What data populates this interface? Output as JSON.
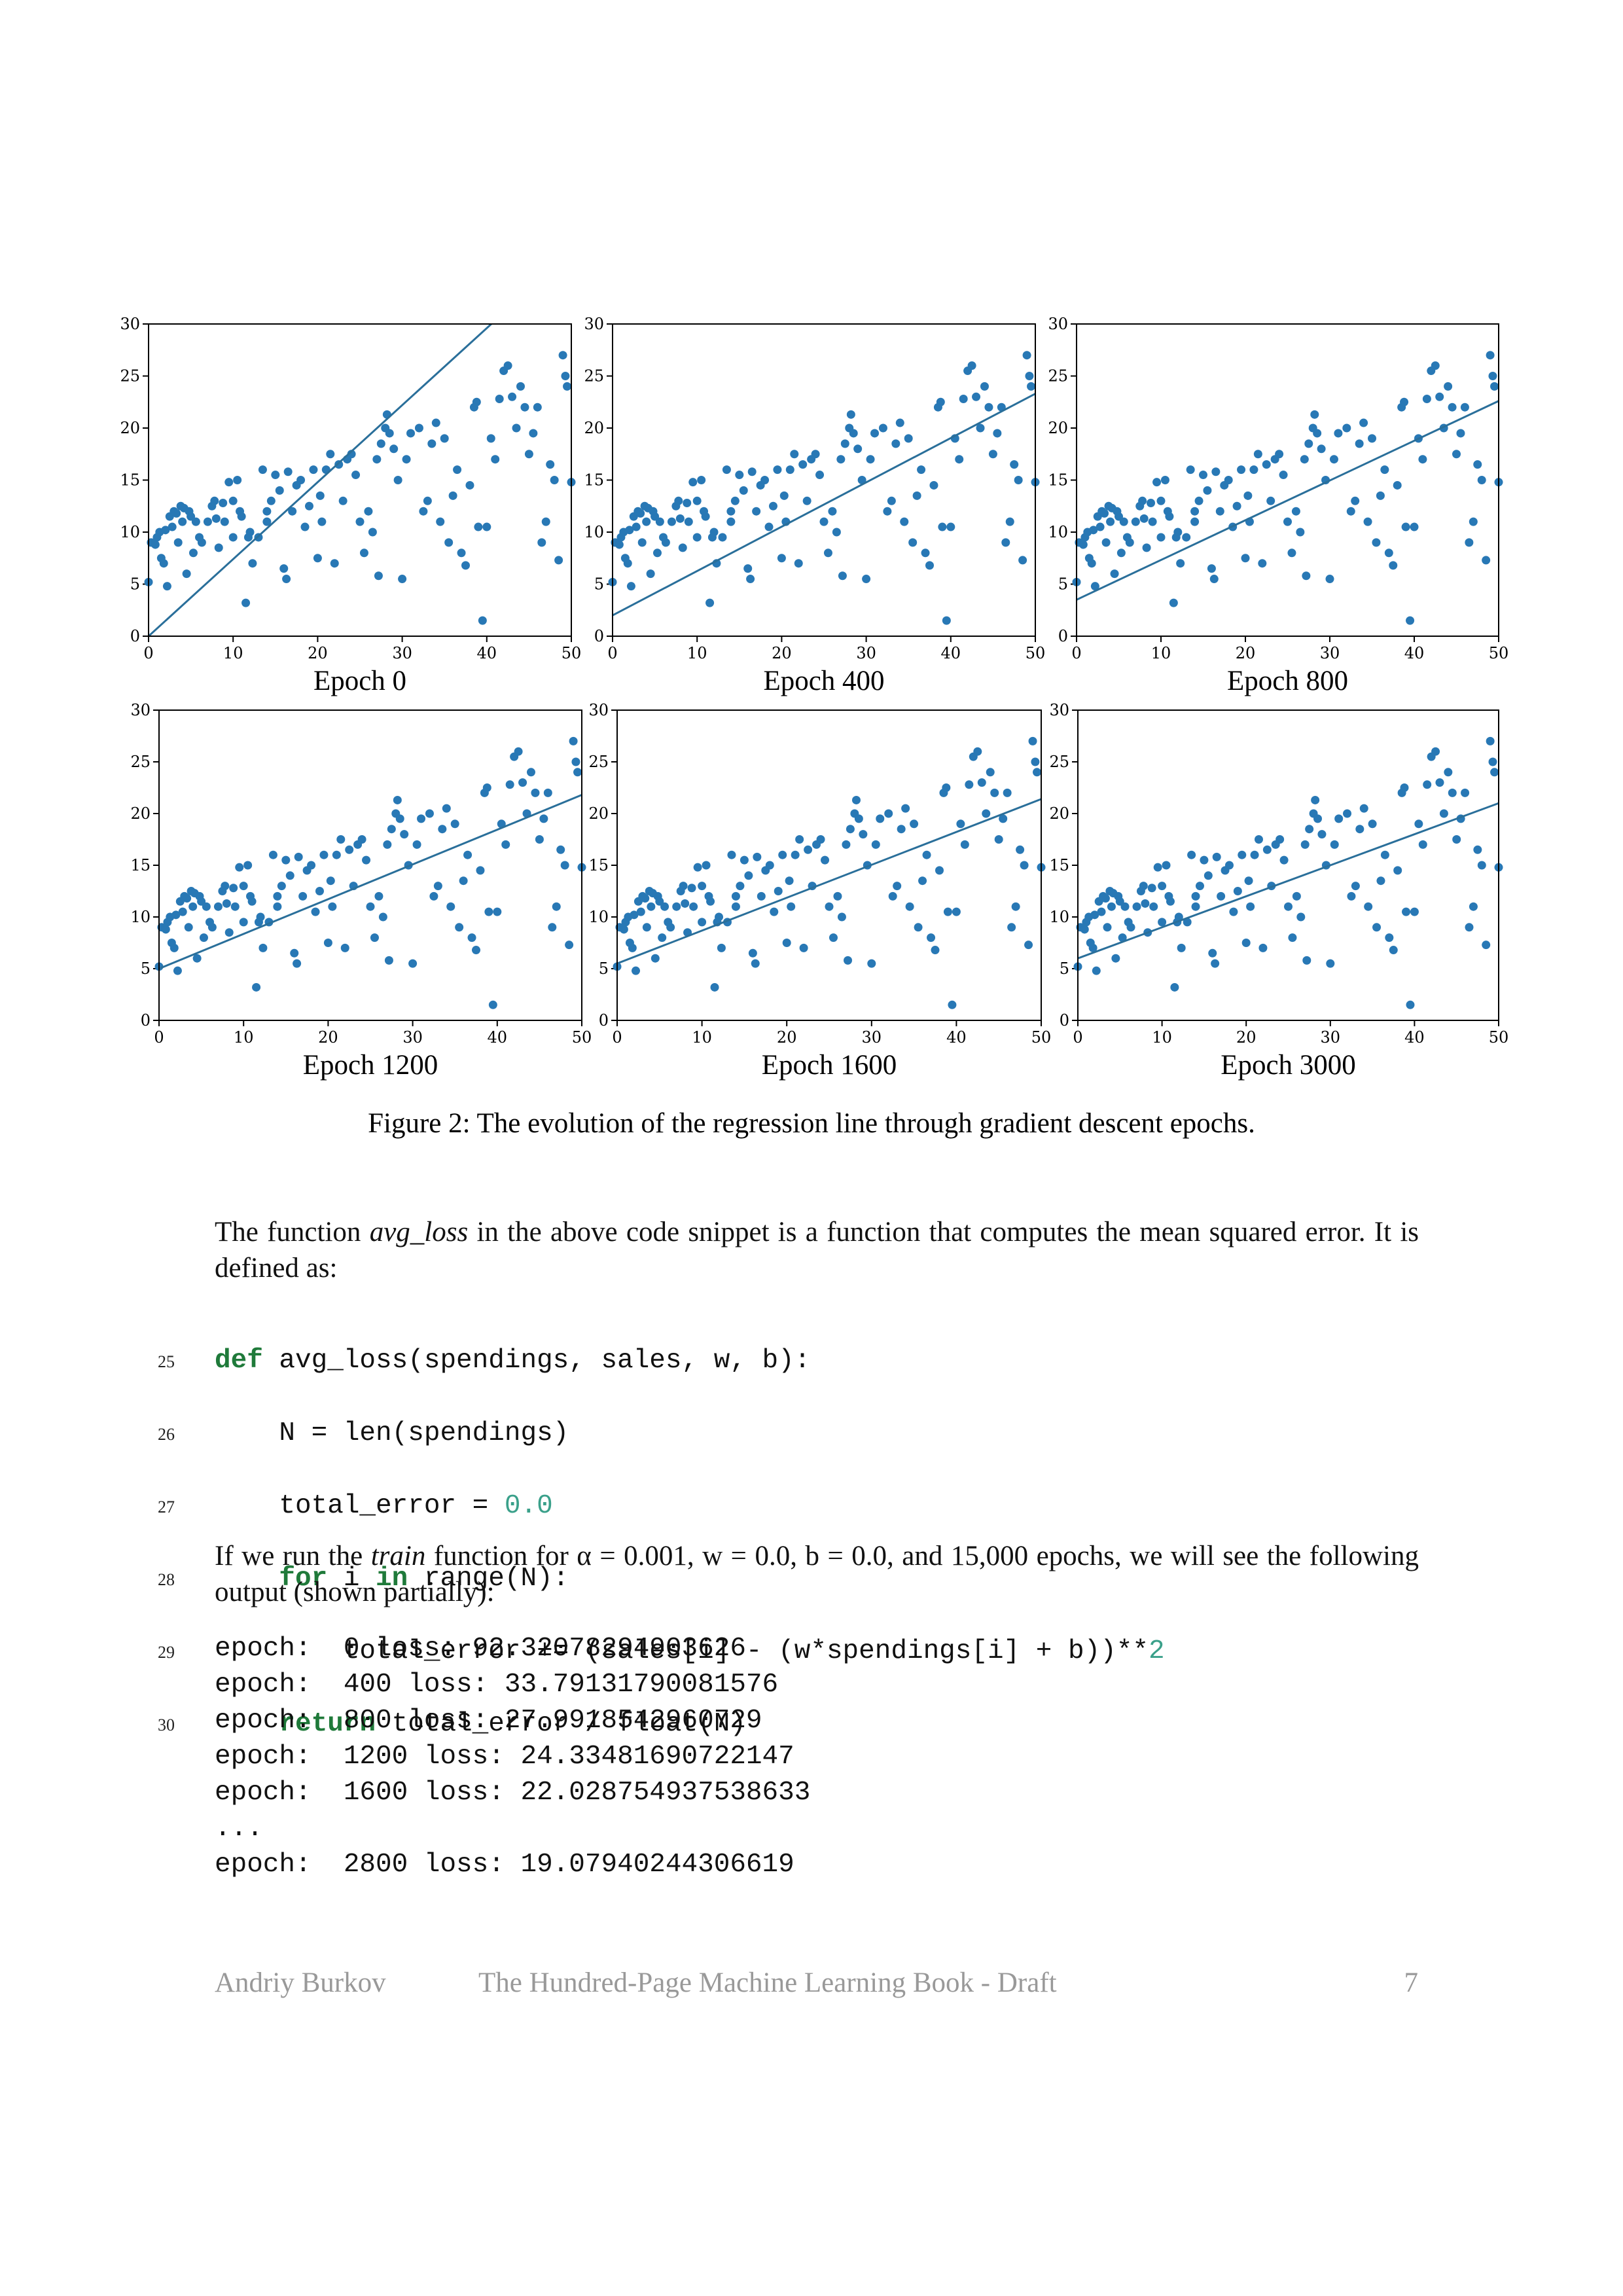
{
  "chart_data": {
    "type": "scatter",
    "color": "#2878b5",
    "line_color": "#2a6f9a",
    "xlim": [
      0,
      50
    ],
    "ylim": [
      0,
      30
    ],
    "xticks": [
      0,
      10,
      20,
      30,
      40,
      50
    ],
    "yticks": [
      0,
      5,
      10,
      15,
      20,
      25,
      30
    ],
    "x": [
      0,
      0.3,
      0.8,
      1,
      1.3,
      1.5,
      1.8,
      2,
      2.2,
      2.5,
      2.8,
      3,
      3.3,
      3.5,
      3.8,
      4,
      4.2,
      4.5,
      4.8,
      5,
      5.3,
      5.6,
      6,
      6.3,
      7,
      7.5,
      7.8,
      8,
      8.3,
      8.8,
      9,
      9.5,
      10,
      10,
      10.5,
      10.8,
      11,
      11.5,
      11.8,
      12,
      12.3,
      13,
      13.5,
      14,
      14,
      14.5,
      15,
      15.5,
      16,
      16.3,
      16.5,
      17,
      17.5,
      18,
      18.5,
      19,
      19.5,
      20,
      20.3,
      20.5,
      21,
      21.5,
      22,
      22.5,
      23,
      23.5,
      24,
      24.5,
      25,
      25.5,
      26,
      26.5,
      27,
      27.2,
      27.5,
      28,
      28.2,
      28.5,
      29,
      29.5,
      30,
      30.5,
      31,
      32,
      32.5,
      33,
      33.5,
      34,
      34.5,
      35,
      35.5,
      36,
      36.5,
      37,
      37.5,
      38,
      38.5,
      38.8,
      39,
      39.5,
      40,
      40.5,
      41,
      41.5,
      42,
      42.5,
      43,
      43.5,
      44,
      44.5,
      45,
      45.5,
      46,
      46.5,
      47,
      47.5,
      48,
      48.5,
      49,
      49.3,
      49.5,
      50
    ],
    "y": [
      5.2,
      9,
      8.8,
      9.5,
      10,
      7.5,
      7,
      10.2,
      4.8,
      11.5,
      10.5,
      12,
      11.8,
      9,
      12.5,
      11,
      12.3,
      6,
      12,
      11.5,
      8,
      11,
      9.5,
      9,
      11,
      12.5,
      13,
      11.3,
      8.5,
      12.8,
      11,
      14.8,
      13,
      9.5,
      15,
      12,
      11.5,
      3.2,
      9.5,
      10,
      7,
      9.5,
      16,
      12,
      11,
      13,
      15.5,
      14,
      6.5,
      5.5,
      15.8,
      12,
      14.5,
      15,
      10.5,
      12.5,
      16,
      7.5,
      13.5,
      11,
      16,
      17.5,
      7,
      16.5,
      13,
      17,
      17.5,
      15.5,
      11,
      8,
      12,
      10,
      17,
      5.8,
      18.5,
      20,
      21.3,
      19.5,
      18,
      15,
      5.5,
      17,
      19.5,
      20,
      12,
      13,
      18.5,
      20.5,
      11,
      19,
      9,
      13.5,
      16,
      8,
      6.8,
      14.5,
      22,
      22.5,
      10.5,
      1.5,
      10.5,
      19,
      17,
      22.8,
      25.5,
      26,
      23,
      20,
      24,
      22,
      17.5,
      19.5,
      22,
      9,
      11,
      16.5,
      15,
      7.3,
      27,
      25,
      24,
      14.8
    ],
    "panels": [
      {
        "label": "Epoch 0",
        "line": [
          0,
          37
        ]
      },
      {
        "label": "Epoch 400",
        "line": [
          2,
          23.3
        ]
      },
      {
        "label": "Epoch 800",
        "line": [
          3.5,
          22.6
        ]
      },
      {
        "label": "Epoch 1200",
        "line": [
          5,
          21.8
        ]
      },
      {
        "label": "Epoch 1600",
        "line": [
          5.5,
          21.4
        ]
      },
      {
        "label": "Epoch 3000",
        "line": [
          6,
          21
        ]
      }
    ],
    "caption": "Figure 2: The evolution of the regression line through gradient descent epochs."
  },
  "paragraphs": [
    [
      "The function ",
      "avg_loss",
      " in the above code snippet is a function that computes the mean squared error. It is defined as:"
    ],
    [
      "If we run the ",
      "train",
      " function for α = 0.001, w = 0.0, b = 0.0, and 15,000 epochs, we will see the following output (shown partially):"
    ]
  ],
  "code": {
    "line_numbers": [
      25,
      26,
      27,
      28,
      29,
      30
    ],
    "lines": [
      [
        "def",
        " avg_loss(spendings, sales, w, b):"
      ],
      [
        "    N = len(spendings)"
      ],
      [
        "    total_error = ",
        "0.0"
      ],
      [
        "    ",
        "for",
        " i ",
        "in",
        " range(N):"
      ],
      [
        "        total_error += (sales[i] - (w*spendings[i] + b))**",
        "2"
      ],
      [
        "    ",
        "return",
        " total_error / float(N)"
      ]
    ]
  },
  "output": [
    "epoch:  0 loss: 92.32078294903626",
    "epoch:  400 loss: 33.79131790081576",
    "epoch:  800 loss: 27.9918542960729",
    "epoch:  1200 loss: 24.33481690722147",
    "epoch:  1600 loss: 22.028754937538633",
    "...",
    "epoch:  2800 loss: 19.07940244306619"
  ],
  "footer": {
    "author": "Andriy Burkov",
    "book": "The Hundred-Page Machine Learning Book - Draft",
    "page": "7"
  }
}
